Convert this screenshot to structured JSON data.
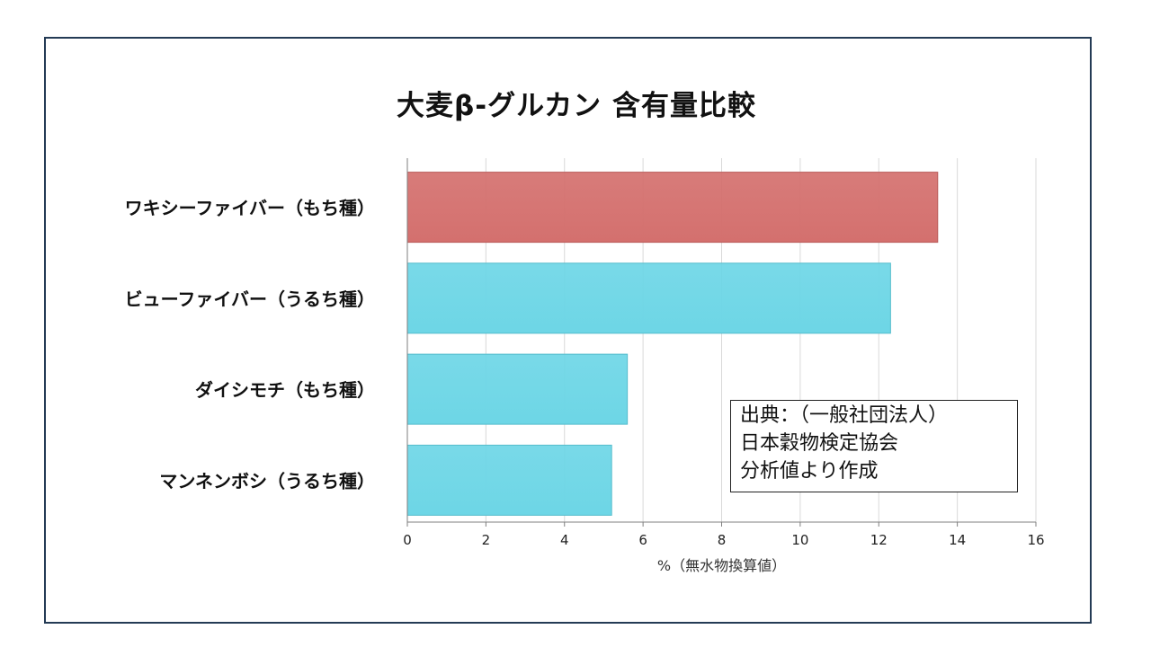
{
  "chart_data": {
    "type": "bar",
    "orientation": "horizontal",
    "title": "大麦β-グルカン 含有量比較",
    "xlabel": "%（無水物換算値）",
    "ylabel": "",
    "xlim": [
      0,
      16
    ],
    "x_ticks": [
      "0",
      "2",
      "4",
      "6",
      "8",
      "10",
      "12",
      "14",
      "16"
    ],
    "grid": true,
    "categories": [
      "ワキシーファイバー（もち種）",
      "ビューファイバー（うるち種）",
      "ダイシモチ（もち種）",
      "マンネンボシ（うるち種）"
    ],
    "values": [
      13.5,
      12.3,
      5.6,
      5.2
    ],
    "bar_colors": [
      "#d4706e",
      "#6dd6e6",
      "#6dd6e6",
      "#6dd6e6"
    ],
    "annotation": [
      "出典：（一般社団法人）",
      "日本穀物検定協会",
      "分析値より作成"
    ]
  },
  "colors": {
    "frame_border": "#243b55",
    "highlight": "#d4706e",
    "bar": "#6dd6e6",
    "grid": "#d9d9d9",
    "axis": "#7f7f7f"
  }
}
